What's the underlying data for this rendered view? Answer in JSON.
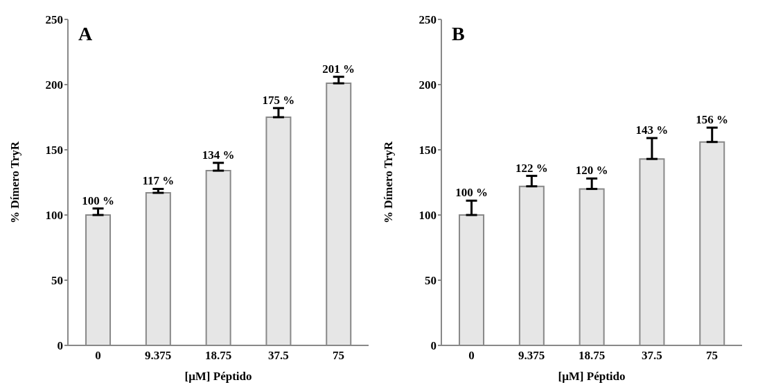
{
  "chart_data": [
    {
      "type": "bar",
      "title": "A",
      "categories": [
        "0",
        "9.375",
        "18.75",
        "37.5",
        "75"
      ],
      "values": [
        100,
        117,
        134,
        175,
        201
      ],
      "errors": [
        [
          100,
          105
        ],
        [
          117,
          120
        ],
        [
          134,
          140
        ],
        [
          175,
          182
        ],
        [
          201,
          206
        ]
      ],
      "value_labels": [
        "100 %",
        "117 %",
        "134 %",
        "175 %",
        "201 %"
      ],
      "color": "#e6e6e6",
      "ylim": [
        0,
        250
      ],
      "yticks": [
        0,
        50,
        100,
        150,
        200,
        250
      ],
      "xlabel": "[μM] Péptido",
      "ylabel": "% Dímero TryR",
      "grid": false,
      "legend": false
    },
    {
      "type": "bar",
      "title": "B",
      "categories": [
        "0",
        "9.375",
        "18.75",
        "37.5",
        "75"
      ],
      "values": [
        100,
        122,
        120,
        143,
        156
      ],
      "errors": [
        [
          100,
          111
        ],
        [
          122,
          130
        ],
        [
          120,
          128
        ],
        [
          143,
          159
        ],
        [
          156,
          167
        ]
      ],
      "value_labels": [
        "100 %",
        "122 %",
        "120 %",
        "143 %",
        "156 %"
      ],
      "color": "#e6e6e6",
      "ylim": [
        0,
        250
      ],
      "yticks": [
        0,
        50,
        100,
        150,
        200,
        250
      ],
      "xlabel": "[μM] Péptido",
      "ylabel": "% Dímero TryR",
      "grid": false,
      "legend": false
    }
  ]
}
